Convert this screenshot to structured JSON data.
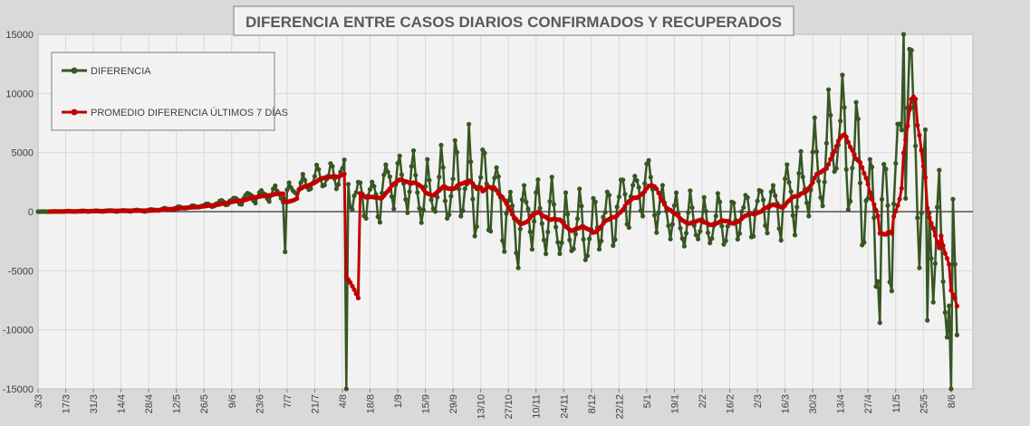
{
  "chart_data": {
    "type": "line",
    "title": "DIFERENCIA ENTRE CASOS DIARIOS CONFIRMADOS Y RECUPERADOS",
    "xlabel": "",
    "ylabel": "",
    "ylim": [
      -15000,
      15000
    ],
    "yticks": [
      15000,
      10000,
      5000,
      0,
      -5000,
      -10000,
      -15000
    ],
    "ytick_labels": [
      "15000",
      "10000",
      "5000",
      "0",
      "-5000",
      "-10000",
      "-15000"
    ],
    "grid": true,
    "legend_position": "top-left",
    "x_start": "2020-03-03",
    "x_tick_labels": [
      "3/3",
      "17/3",
      "31/3",
      "14/4",
      "28/4",
      "12/5",
      "26/5",
      "9/6",
      "23/6",
      "7/7",
      "21/7",
      "4/8",
      "18/8",
      "1/9",
      "15/9",
      "29/9",
      "13/10",
      "27/10",
      "10/11",
      "24/11",
      "8/12",
      "22/12",
      "5/1",
      "19/1",
      "2/2",
      "16/2",
      "2/3",
      "16/3",
      "30/3",
      "13/4",
      "27/4",
      "11/5",
      "25/5",
      "8/6"
    ],
    "colors": {
      "diferencia": "#375623",
      "promedio": "#c00000",
      "plot_bg": "#f2f2f2",
      "page_bg": "#d9d9d9"
    },
    "series": [
      {
        "name": "DIFERENCIA",
        "key": "diferencia",
        "anchors": [
          [
            "2020-03-03",
            0
          ],
          [
            "2020-04-28",
            100
          ],
          [
            "2020-05-26",
            500
          ],
          [
            "2020-06-09",
            900
          ],
          [
            "2020-06-23",
            1400
          ],
          [
            "2020-07-07",
            1600
          ],
          [
            "2020-07-21",
            2800
          ],
          [
            "2020-08-04",
            3300
          ],
          [
            "2020-08-05",
            -15000
          ],
          [
            "2020-08-10",
            1500
          ],
          [
            "2020-08-18",
            1000
          ],
          [
            "2020-09-01",
            3000
          ],
          [
            "2020-09-15",
            1500
          ],
          [
            "2020-09-29",
            2500
          ],
          [
            "2020-10-13",
            1800
          ],
          [
            "2020-10-20",
            2200
          ],
          [
            "2020-10-27",
            -1000
          ],
          [
            "2020-11-10",
            0
          ],
          [
            "2020-11-24",
            -1300
          ],
          [
            "2020-12-08",
            -1500
          ],
          [
            "2020-12-22",
            500
          ],
          [
            "2021-01-05",
            2500
          ],
          [
            "2021-01-12",
            500
          ],
          [
            "2021-01-19",
            -700
          ],
          [
            "2021-02-02",
            -900
          ],
          [
            "2021-02-16",
            -800
          ],
          [
            "2021-03-02",
            300
          ],
          [
            "2021-03-16",
            900
          ],
          [
            "2021-03-30",
            3000
          ],
          [
            "2021-04-13",
            7000
          ],
          [
            "2021-04-27",
            1000
          ],
          [
            "2021-05-04",
            -1500
          ],
          [
            "2021-05-11",
            2000
          ],
          [
            "2021-05-18",
            10000
          ],
          [
            "2021-05-25",
            500
          ],
          [
            "2021-06-01",
            -2000
          ],
          [
            "2021-06-11",
            -8600
          ]
        ],
        "weekly_amplitude": [
          [
            "2020-03-03",
            0
          ],
          [
            "2020-05-26",
            100
          ],
          [
            "2020-06-23",
            500
          ],
          [
            "2020-07-21",
            800
          ],
          [
            "2020-08-18",
            1800
          ],
          [
            "2020-09-15",
            2500
          ],
          [
            "2020-10-13",
            3500
          ],
          [
            "2020-10-27",
            3000
          ],
          [
            "2020-12-08",
            2500
          ],
          [
            "2021-01-19",
            2000
          ],
          [
            "2021-03-02",
            1800
          ],
          [
            "2021-03-30",
            3500
          ],
          [
            "2021-04-13",
            4500
          ],
          [
            "2021-05-11",
            6000
          ],
          [
            "2021-06-11",
            6000
          ]
        ],
        "spikes": [
          [
            "2020-07-06",
            -3400
          ],
          [
            "2020-08-06",
            -15000
          ],
          [
            "2020-10-07",
            7400
          ],
          [
            "2021-05-03",
            -9400
          ],
          [
            "2021-05-15",
            15000
          ],
          [
            "2021-05-27",
            -9200
          ],
          [
            "2021-06-08",
            -15000
          ]
        ]
      },
      {
        "name": "PROMEDIO DIFERENCIA ÚLTIMOS 7 DÍAS",
        "key": "promedio",
        "start": "2020-03-09",
        "special": [
          [
            "2020-08-06",
            -5500
          ],
          [
            "2020-08-08",
            -6000
          ],
          [
            "2020-08-10",
            -6600
          ],
          [
            "2020-08-12",
            -7300
          ]
        ]
      }
    ]
  }
}
